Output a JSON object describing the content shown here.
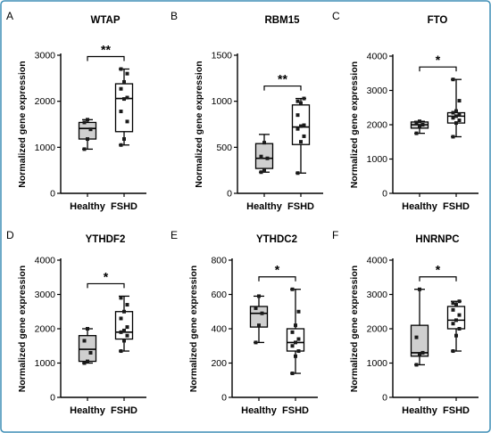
{
  "figure": {
    "border_color": "#3e8eb6"
  },
  "chart_data": [
    {
      "type": "box",
      "panel": "A",
      "title": "WTAP",
      "xlabel": "",
      "ylabel": "Normalized gene expression",
      "categories": [
        "Healthy",
        "FSHD"
      ],
      "ylim": [
        0,
        3000
      ],
      "yticks": [
        0,
        1000,
        2000,
        3000
      ],
      "boxes": [
        {
          "category": "Healthy",
          "min": 960,
          "q1": 1180,
          "median": 1410,
          "q3": 1540,
          "max": 1600,
          "fill": "#cfcfcf",
          "points": [
            960,
            1180,
            1390,
            1540,
            1600
          ]
        },
        {
          "category": "FSHD",
          "min": 1050,
          "q1": 1340,
          "median": 2060,
          "q3": 2380,
          "max": 2700,
          "fill": "#ffffff",
          "points": [
            1050,
            1180,
            1560,
            1780,
            2050,
            2080,
            2270,
            2420,
            2600,
            2700
          ]
        }
      ],
      "significance": "**"
    },
    {
      "type": "box",
      "panel": "B",
      "title": "RBM15",
      "xlabel": "",
      "ylabel": "Normalized gene expression",
      "categories": [
        "Healthy",
        "FSHD"
      ],
      "ylim": [
        0,
        1500
      ],
      "yticks": [
        0,
        500,
        1000,
        1500
      ],
      "boxes": [
        {
          "category": "Healthy",
          "min": 230,
          "q1": 270,
          "median": 380,
          "q3": 540,
          "max": 640,
          "fill": "#cfcfcf",
          "points": [
            230,
            250,
            380,
            400,
            550
          ]
        },
        {
          "category": "FSHD",
          "min": 220,
          "q1": 530,
          "median": 720,
          "q3": 960,
          "max": 1030,
          "fill": "#ffffff",
          "points": [
            220,
            560,
            620,
            700,
            730,
            740,
            850,
            980,
            1030,
            1000
          ]
        }
      ],
      "significance": "**"
    },
    {
      "type": "box",
      "panel": "C",
      "title": "FTO",
      "xlabel": "",
      "ylabel": "Normalized gene expression",
      "categories": [
        "Healthy",
        "FSHD"
      ],
      "ylim": [
        0,
        4000
      ],
      "yticks": [
        0,
        1000,
        2000,
        3000,
        4000
      ],
      "boxes": [
        {
          "category": "Healthy",
          "min": 1750,
          "q1": 1900,
          "median": 2000,
          "q3": 2080,
          "max": 2100,
          "fill": "#cfcfcf",
          "points": [
            1750,
            1950,
            2000,
            2060,
            2100
          ]
        },
        {
          "category": "FSHD",
          "min": 1650,
          "q1": 2050,
          "median": 2250,
          "q3": 2350,
          "max": 3320,
          "fill": "#ffffff",
          "points": [
            1650,
            2050,
            2130,
            2200,
            2250,
            2300,
            2350,
            2400,
            2700,
            3320
          ]
        }
      ],
      "significance": "*"
    },
    {
      "type": "box",
      "panel": "D",
      "title": "YTHDF2",
      "xlabel": "",
      "ylabel": "Normalized gene expression",
      "categories": [
        "Healthy",
        "FSHD"
      ],
      "ylim": [
        0,
        4000
      ],
      "yticks": [
        0,
        1000,
        2000,
        3000,
        4000
      ],
      "boxes": [
        {
          "category": "Healthy",
          "min": 1000,
          "q1": 1050,
          "median": 1400,
          "q3": 1800,
          "max": 2000,
          "fill": "#cfcfcf",
          "points": [
            1000,
            1050,
            1300,
            1650,
            2000
          ]
        },
        {
          "category": "FSHD",
          "min": 1350,
          "q1": 1700,
          "median": 1900,
          "q3": 2500,
          "max": 2950,
          "fill": "#ffffff",
          "points": [
            1350,
            1650,
            1800,
            1900,
            1950,
            2050,
            2300,
            2500,
            2700,
            2900
          ]
        }
      ],
      "significance": "*"
    },
    {
      "type": "box",
      "panel": "E",
      "title": "YTHDC2",
      "xlabel": "",
      "ylabel": "Normalized gene expression",
      "categories": [
        "Healthy",
        "FSHD"
      ],
      "ylim": [
        0,
        800
      ],
      "yticks": [
        0,
        200,
        400,
        600,
        800
      ],
      "boxes": [
        {
          "category": "Healthy",
          "min": 320,
          "q1": 410,
          "median": 490,
          "q3": 530,
          "max": 590,
          "fill": "#cfcfcf",
          "points": [
            320,
            420,
            490,
            520,
            590
          ]
        },
        {
          "category": "FSHD",
          "min": 140,
          "q1": 270,
          "median": 320,
          "q3": 400,
          "max": 630,
          "fill": "#ffffff",
          "points": [
            140,
            240,
            270,
            300,
            320,
            340,
            380,
            420,
            500,
            630
          ]
        }
      ],
      "significance": "*"
    },
    {
      "type": "box",
      "panel": "F",
      "title": "HNRNPC",
      "xlabel": "",
      "ylabel": "Normalized gene expression",
      "categories": [
        "Healthy",
        "FSHD"
      ],
      "ylim": [
        0,
        4000
      ],
      "yticks": [
        0,
        1000,
        2000,
        3000,
        4000
      ],
      "boxes": [
        {
          "category": "Healthy",
          "min": 950,
          "q1": 1200,
          "median": 1300,
          "q3": 2100,
          "max": 3150,
          "fill": "#cfcfcf",
          "points": [
            950,
            1250,
            1300,
            1750,
            3150
          ]
        },
        {
          "category": "FSHD",
          "min": 1350,
          "q1": 2000,
          "median": 2250,
          "q3": 2650,
          "max": 2800,
          "fill": "#ffffff",
          "points": [
            1350,
            1800,
            2000,
            2150,
            2250,
            2400,
            2550,
            2700,
            2800,
            2750
          ]
        }
      ],
      "significance": "*"
    }
  ]
}
